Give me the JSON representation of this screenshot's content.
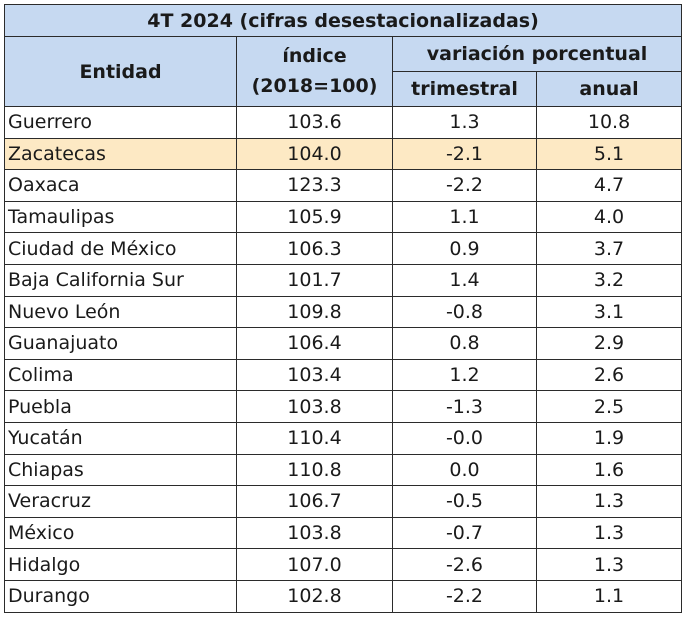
{
  "table": {
    "title": "4T 2024 (cifras desestacionalizadas)",
    "col_entidad": "Entidad",
    "col_indice_1": "índice",
    "col_indice_2": "(2018=100)",
    "col_variacion": "variación porcentual",
    "col_trimestral": "trimestral",
    "col_anual": "anual",
    "highlight_color": "#fde9c4",
    "header_color": "#c6d9f1",
    "rows": [
      {
        "entidad": "Guerrero",
        "indice": "103.6",
        "trimestral": "1.3",
        "anual": "10.8"
      },
      {
        "entidad": "Zacatecas",
        "indice": "104.0",
        "trimestral": "-2.1",
        "anual": "5.1",
        "highlighted": true
      },
      {
        "entidad": "Oaxaca",
        "indice": "123.3",
        "trimestral": "-2.2",
        "anual": "4.7"
      },
      {
        "entidad": "Tamaulipas",
        "indice": "105.9",
        "trimestral": "1.1",
        "anual": "4.0"
      },
      {
        "entidad": "Ciudad de México",
        "indice": "106.3",
        "trimestral": "0.9",
        "anual": "3.7"
      },
      {
        "entidad": "Baja California Sur",
        "indice": "101.7",
        "trimestral": "1.4",
        "anual": "3.2"
      },
      {
        "entidad": "Nuevo León",
        "indice": "109.8",
        "trimestral": "-0.8",
        "anual": "3.1"
      },
      {
        "entidad": "Guanajuato",
        "indice": "106.4",
        "trimestral": "0.8",
        "anual": "2.9"
      },
      {
        "entidad": "Colima",
        "indice": "103.4",
        "trimestral": "1.2",
        "anual": "2.6"
      },
      {
        "entidad": "Puebla",
        "indice": "103.8",
        "trimestral": "-1.3",
        "anual": "2.5"
      },
      {
        "entidad": "Yucatán",
        "indice": "110.4",
        "trimestral": "-0.0",
        "anual": "1.9"
      },
      {
        "entidad": "Chiapas",
        "indice": "110.8",
        "trimestral": "0.0",
        "anual": "1.6"
      },
      {
        "entidad": "Veracruz",
        "indice": "106.7",
        "trimestral": "-0.5",
        "anual": "1.3"
      },
      {
        "entidad": "México",
        "indice": "103.8",
        "trimestral": "-0.7",
        "anual": "1.3"
      },
      {
        "entidad": "Hidalgo",
        "indice": "107.0",
        "trimestral": "-2.6",
        "anual": "1.3"
      },
      {
        "entidad": "Durango",
        "indice": "102.8",
        "trimestral": "-2.2",
        "anual": "1.1"
      }
    ]
  }
}
